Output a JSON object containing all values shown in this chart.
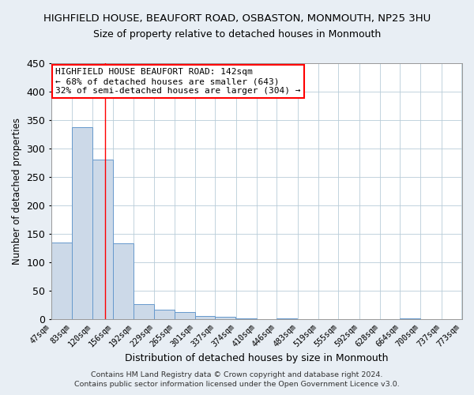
{
  "title": "HIGHFIELD HOUSE, BEAUFORT ROAD, OSBASTON, MONMOUTH, NP25 3HU",
  "subtitle": "Size of property relative to detached houses in Monmouth",
  "xlabel": "Distribution of detached houses by size in Monmouth",
  "ylabel": "Number of detached properties",
  "bar_values": [
    135,
    337,
    281,
    134,
    27,
    17,
    12,
    6,
    4,
    1,
    0,
    1,
    0,
    0,
    0,
    0,
    0,
    1,
    0,
    0
  ],
  "bar_left_edges": [
    47,
    83,
    120,
    156,
    192,
    229,
    265,
    301,
    337,
    374,
    410,
    446,
    483,
    519,
    555,
    592,
    628,
    664,
    700,
    737
  ],
  "bin_width": 36,
  "tick_labels": [
    "47sqm",
    "83sqm",
    "120sqm",
    "156sqm",
    "192sqm",
    "229sqm",
    "265sqm",
    "301sqm",
    "337sqm",
    "374sqm",
    "410sqm",
    "446sqm",
    "483sqm",
    "519sqm",
    "555sqm",
    "592sqm",
    "628sqm",
    "664sqm",
    "700sqm",
    "737sqm",
    "773sqm"
  ],
  "bar_color": "#ccd9e8",
  "bar_edge_color": "#6699cc",
  "redline_x": 142,
  "ylim": [
    0,
    450
  ],
  "yticks": [
    0,
    50,
    100,
    150,
    200,
    250,
    300,
    350,
    400,
    450
  ],
  "annotation_title": "HIGHFIELD HOUSE BEAUFORT ROAD: 142sqm",
  "annotation_line1": "← 68% of detached houses are smaller (643)",
  "annotation_line2": "32% of semi-detached houses are larger (304) →",
  "footer1": "Contains HM Land Registry data © Crown copyright and database right 2024.",
  "footer2": "Contains public sector information licensed under the Open Government Licence v3.0.",
  "background_color": "#e8eef4",
  "plot_background_color": "#ffffff",
  "grid_color": "#b8ccd8",
  "title_fontsize": 9.5,
  "subtitle_fontsize": 9.0,
  "xlabel_fontsize": 9.0,
  "ylabel_fontsize": 8.5,
  "tick_fontsize": 7.2,
  "annotation_fontsize": 8.0,
  "footer_fontsize": 6.8
}
